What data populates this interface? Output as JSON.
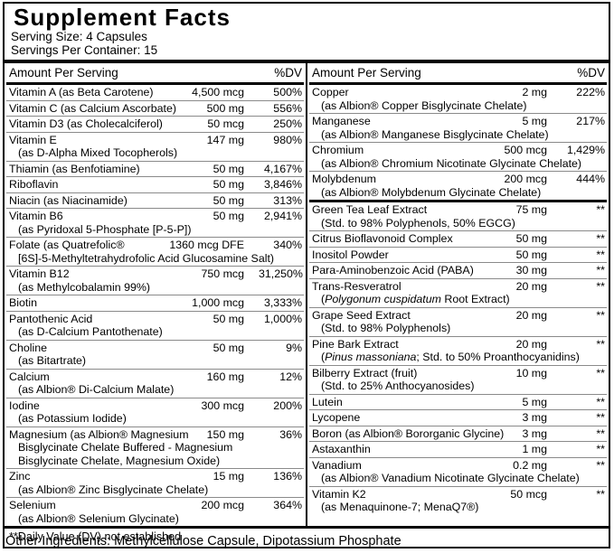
{
  "label": {
    "title": "Supplement Facts",
    "serving_size": "Serving Size: 4 Capsules",
    "servings_per_container": "Servings Per Container: 15",
    "column_header": {
      "amount": "Amount Per Serving",
      "dv": "%DV"
    },
    "footnote": "**Daily Value (DV) not established",
    "other_ingredients": "Other Ingredients: Methylcellulose Capsule, Dipotassium Phosphate"
  },
  "colors": {
    "text": "#000000",
    "border": "#000000",
    "thin_rule": "#8a8a8a",
    "background": "#ffffff"
  },
  "columns": {
    "left": {
      "rows": [
        {
          "name": "Vitamin A (as Beta Carotene)",
          "amount": "4,500 mcg",
          "dv": "500%"
        },
        {
          "name": "Vitamin C (as Calcium Ascorbate)",
          "amount": "500 mg",
          "dv": "556%"
        },
        {
          "name": "Vitamin D3 (as Cholecalciferol)",
          "amount": "50 mcg",
          "dv": "250%"
        },
        {
          "name": "Vitamin E",
          "amount": "147 mg",
          "dv": "980%",
          "sub": [
            "(as D-Alpha Mixed Tocopherols)"
          ]
        },
        {
          "name": "Thiamin (as Benfotiamine)",
          "amount": "50 mg",
          "dv": "4,167%"
        },
        {
          "name": "Riboflavin",
          "amount": "50 mg",
          "dv": "3,846%"
        },
        {
          "name": "Niacin (as Niacinamide)",
          "amount": "50 mg",
          "dv": "313%"
        },
        {
          "name": "Vitamin B6",
          "amount": "50 mg",
          "dv": "2,941%",
          "sub": [
            "(as Pyridoxal 5-Phosphate [P-5-P])"
          ]
        },
        {
          "name": "Folate (as Quatrefolic®",
          "amount": "1360 mcg DFE",
          "dv": "340%",
          "sub": [
            "[6S]-5-Methyltetrahydrofolic Acid Glucosamine Salt)"
          ]
        },
        {
          "name": "Vitamin B12",
          "amount": "750 mcg",
          "dv": "31,250%",
          "sub": [
            "(as Methylcobalamin 99%)"
          ]
        },
        {
          "name": "Biotin",
          "amount": "1,000 mcg",
          "dv": "3,333%"
        },
        {
          "name": "Pantothenic Acid",
          "amount": "50 mg",
          "dv": "1,000%",
          "sub": [
            "(as D-Calcium Pantothenate)"
          ]
        },
        {
          "name": "Choline",
          "amount": "50 mg",
          "dv": "9%",
          "sub": [
            "(as Bitartrate)"
          ]
        },
        {
          "name": "Calcium",
          "amount": "160 mg",
          "dv": "12%",
          "sub": [
            "(as Albion® Di-Calcium Malate)"
          ]
        },
        {
          "name": "Iodine",
          "amount": "300 mcg",
          "dv": "200%",
          "sub": [
            "(as Potassium Iodide)"
          ]
        },
        {
          "name": "Magnesium (as Albion® Magnesium",
          "amount": "150 mg",
          "dv": "36%",
          "sub": [
            "Bisglycinate Chelate Buffered - Magnesium",
            "Bisglycinate Chelate, Magnesium Oxide)"
          ]
        },
        {
          "name": "Zinc",
          "amount": "15 mg",
          "dv": "136%",
          "sub": [
            "(as Albion® Zinc Bisglycinate Chelate)"
          ]
        },
        {
          "name": "Selenium",
          "amount": "200 mcg",
          "dv": "364%",
          "sub": [
            "(as Albion® Selenium Glycinate)"
          ]
        }
      ]
    },
    "right": {
      "rows": [
        {
          "name": "Copper",
          "amount": "2 mg",
          "dv": "222%",
          "sub": [
            "(as Albion® Copper Bisglycinate Chelate)"
          ]
        },
        {
          "name": "Manganese",
          "amount": "5 mg",
          "dv": "217%",
          "sub": [
            "(as Albion® Manganese Bisglycinate Chelate)"
          ]
        },
        {
          "name": "Chromium",
          "amount": "500 mcg",
          "dv": "1,429%",
          "sub": [
            "(as Albion® Chromium Nicotinate Glycinate Chelate)"
          ]
        },
        {
          "name": "Molybdenum",
          "amount": "200 mcg",
          "dv": "444%",
          "sub": [
            "(as Albion® Molybdenum Glycinate Chelate)"
          ]
        },
        {
          "name": "Green Tea Leaf Extract",
          "amount": "75 mg",
          "dv": "**",
          "sep": "thick",
          "sub": [
            "(Std. to 98% Polyphenols, 50% EGCG)"
          ]
        },
        {
          "name": "Citrus Bioflavonoid Complex",
          "amount": "50 mg",
          "dv": "**"
        },
        {
          "name": "Inositol Powder",
          "amount": "50 mg",
          "dv": "**"
        },
        {
          "name": "Para-Aminobenzoic Acid (PABA)",
          "amount": "30 mg",
          "dv": "**"
        },
        {
          "name": "Trans-Resveratrol",
          "amount": "20 mg",
          "dv": "**",
          "sub": [
            [
              {
                "t": "("
              },
              {
                "t": "Polygonum cuspidatum",
                "i": true
              },
              {
                "t": " Root Extract)"
              }
            ]
          ]
        },
        {
          "name": "Grape Seed Extract",
          "amount": "20 mg",
          "dv": "**",
          "sub": [
            "(Std. to 98% Polyphenols)"
          ]
        },
        {
          "name": "Pine Bark Extract",
          "amount": "20 mg",
          "dv": "**",
          "sub": [
            [
              {
                "t": "("
              },
              {
                "t": "Pinus massoniana",
                "i": true
              },
              {
                "t": "; Std. to 50% Proanthocyanidins)"
              }
            ]
          ]
        },
        {
          "name": "Bilberry Extract (fruit)",
          "amount": "10 mg",
          "dv": "**",
          "sub": [
            "(Std. to 25% Anthocyanosides)"
          ]
        },
        {
          "name": "Lutein",
          "amount": "5 mg",
          "dv": "**"
        },
        {
          "name": "Lycopene",
          "amount": "3 mg",
          "dv": "**"
        },
        {
          "name": "Boron (as Albion® Bororganic Glycine)",
          "amount": "3 mg",
          "dv": "**"
        },
        {
          "name": "Astaxanthin",
          "amount": "1 mg",
          "dv": "**"
        },
        {
          "name": "Vanadium",
          "amount": "0.2 mg",
          "dv": "**",
          "sub": [
            "(as Albion® Vanadium Nicotinate Glycinate Chelate)"
          ]
        },
        {
          "name": "Vitamin K2",
          "amount": "50 mcg",
          "dv": "**",
          "sub": [
            "(as Menaquinone-7; MenaQ7®)"
          ]
        }
      ]
    }
  }
}
